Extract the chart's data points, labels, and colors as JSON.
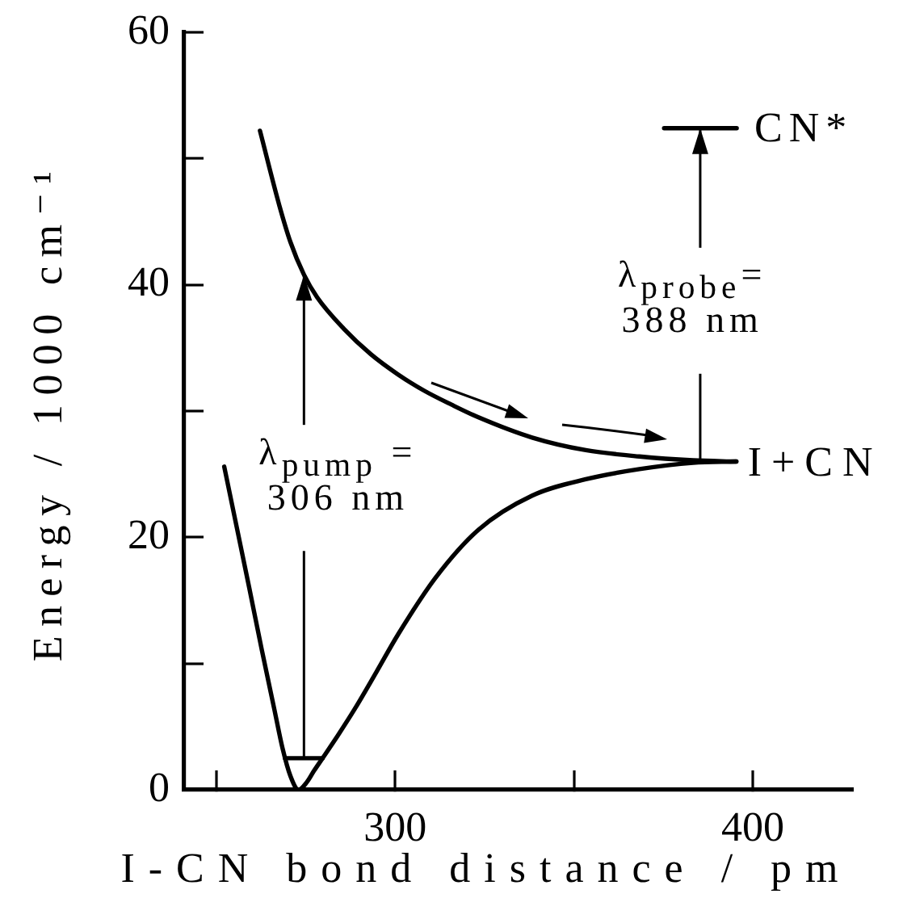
{
  "chart_data": {
    "type": "line",
    "xlabel": "I-CN bond distance / pm",
    "ylabel": "Energy / 1000 cm⁻¹",
    "xlim": [
      241,
      428
    ],
    "xticks": [
      {
        "value": 250,
        "label": null
      },
      300,
      {
        "value": 350,
        "label": null
      },
      400
    ],
    "ylim": [
      0,
      60
    ],
    "yticks": [
      0,
      {
        "value": 10,
        "label": null
      },
      20,
      {
        "value": 30,
        "label": null
      },
      40,
      {
        "value": 50,
        "label": null
      },
      60
    ],
    "series": [
      {
        "color": "#000000",
        "x": [
          252.2,
          255.7,
          259.2,
          262.7,
          266.2,
          268.5,
          270.7,
          273.0,
          275.3,
          277.3,
          279.7,
          284.2,
          288.7,
          294.7,
          300.8,
          311.3,
          323.3,
          338.3,
          353.3,
          368.3,
          383.3,
          395.4
        ],
        "values": [
          25.6,
          20.8,
          16.0,
          11.1,
          6.4,
          3.3,
          1.1,
          0,
          0.6,
          1.5,
          2.5,
          4.4,
          6.4,
          9.3,
          12.3,
          16.8,
          20.6,
          23.3,
          24.6,
          25.4,
          25.9,
          26.0
        ]
      },
      {
        "color": "#000000",
        "x": [
          262.2,
          267.6,
          270.7,
          274.5,
          278.2,
          285.7,
          293.2,
          300.8,
          308.2,
          315.8,
          323.3,
          338.3,
          353.3,
          368.3,
          383.3,
          395.4
        ],
        "values": [
          52.2,
          46.3,
          43.4,
          40.8,
          39.0,
          36.5,
          34.5,
          32.9,
          31.6,
          30.5,
          29.5,
          27.9,
          26.9,
          26.4,
          26.1,
          26.0
        ]
      },
      {
        "color": "#000000",
        "x": [
          269.2,
          279.7
        ],
        "values": [
          2.5,
          2.5
        ]
      },
      {
        "color": "#000000",
        "x": [
          375.2,
          395.5
        ],
        "values": [
          52.4,
          52.4
        ]
      }
    ],
    "annotations": [
      {
        "text": "λ$_{pump}$ =\n306 nm",
        "x": 274.5,
        "y": 40.8
      },
      {
        "text": "λ$_{probe}$=\n388 nm",
        "x": 385.3,
        "y": 52.4
      },
      {
        "text": "I+CN",
        "x": 395.4,
        "y": 26.0
      },
      {
        "text": "CN*",
        "x": 395.5,
        "y": 52.4
      }
    ]
  }
}
